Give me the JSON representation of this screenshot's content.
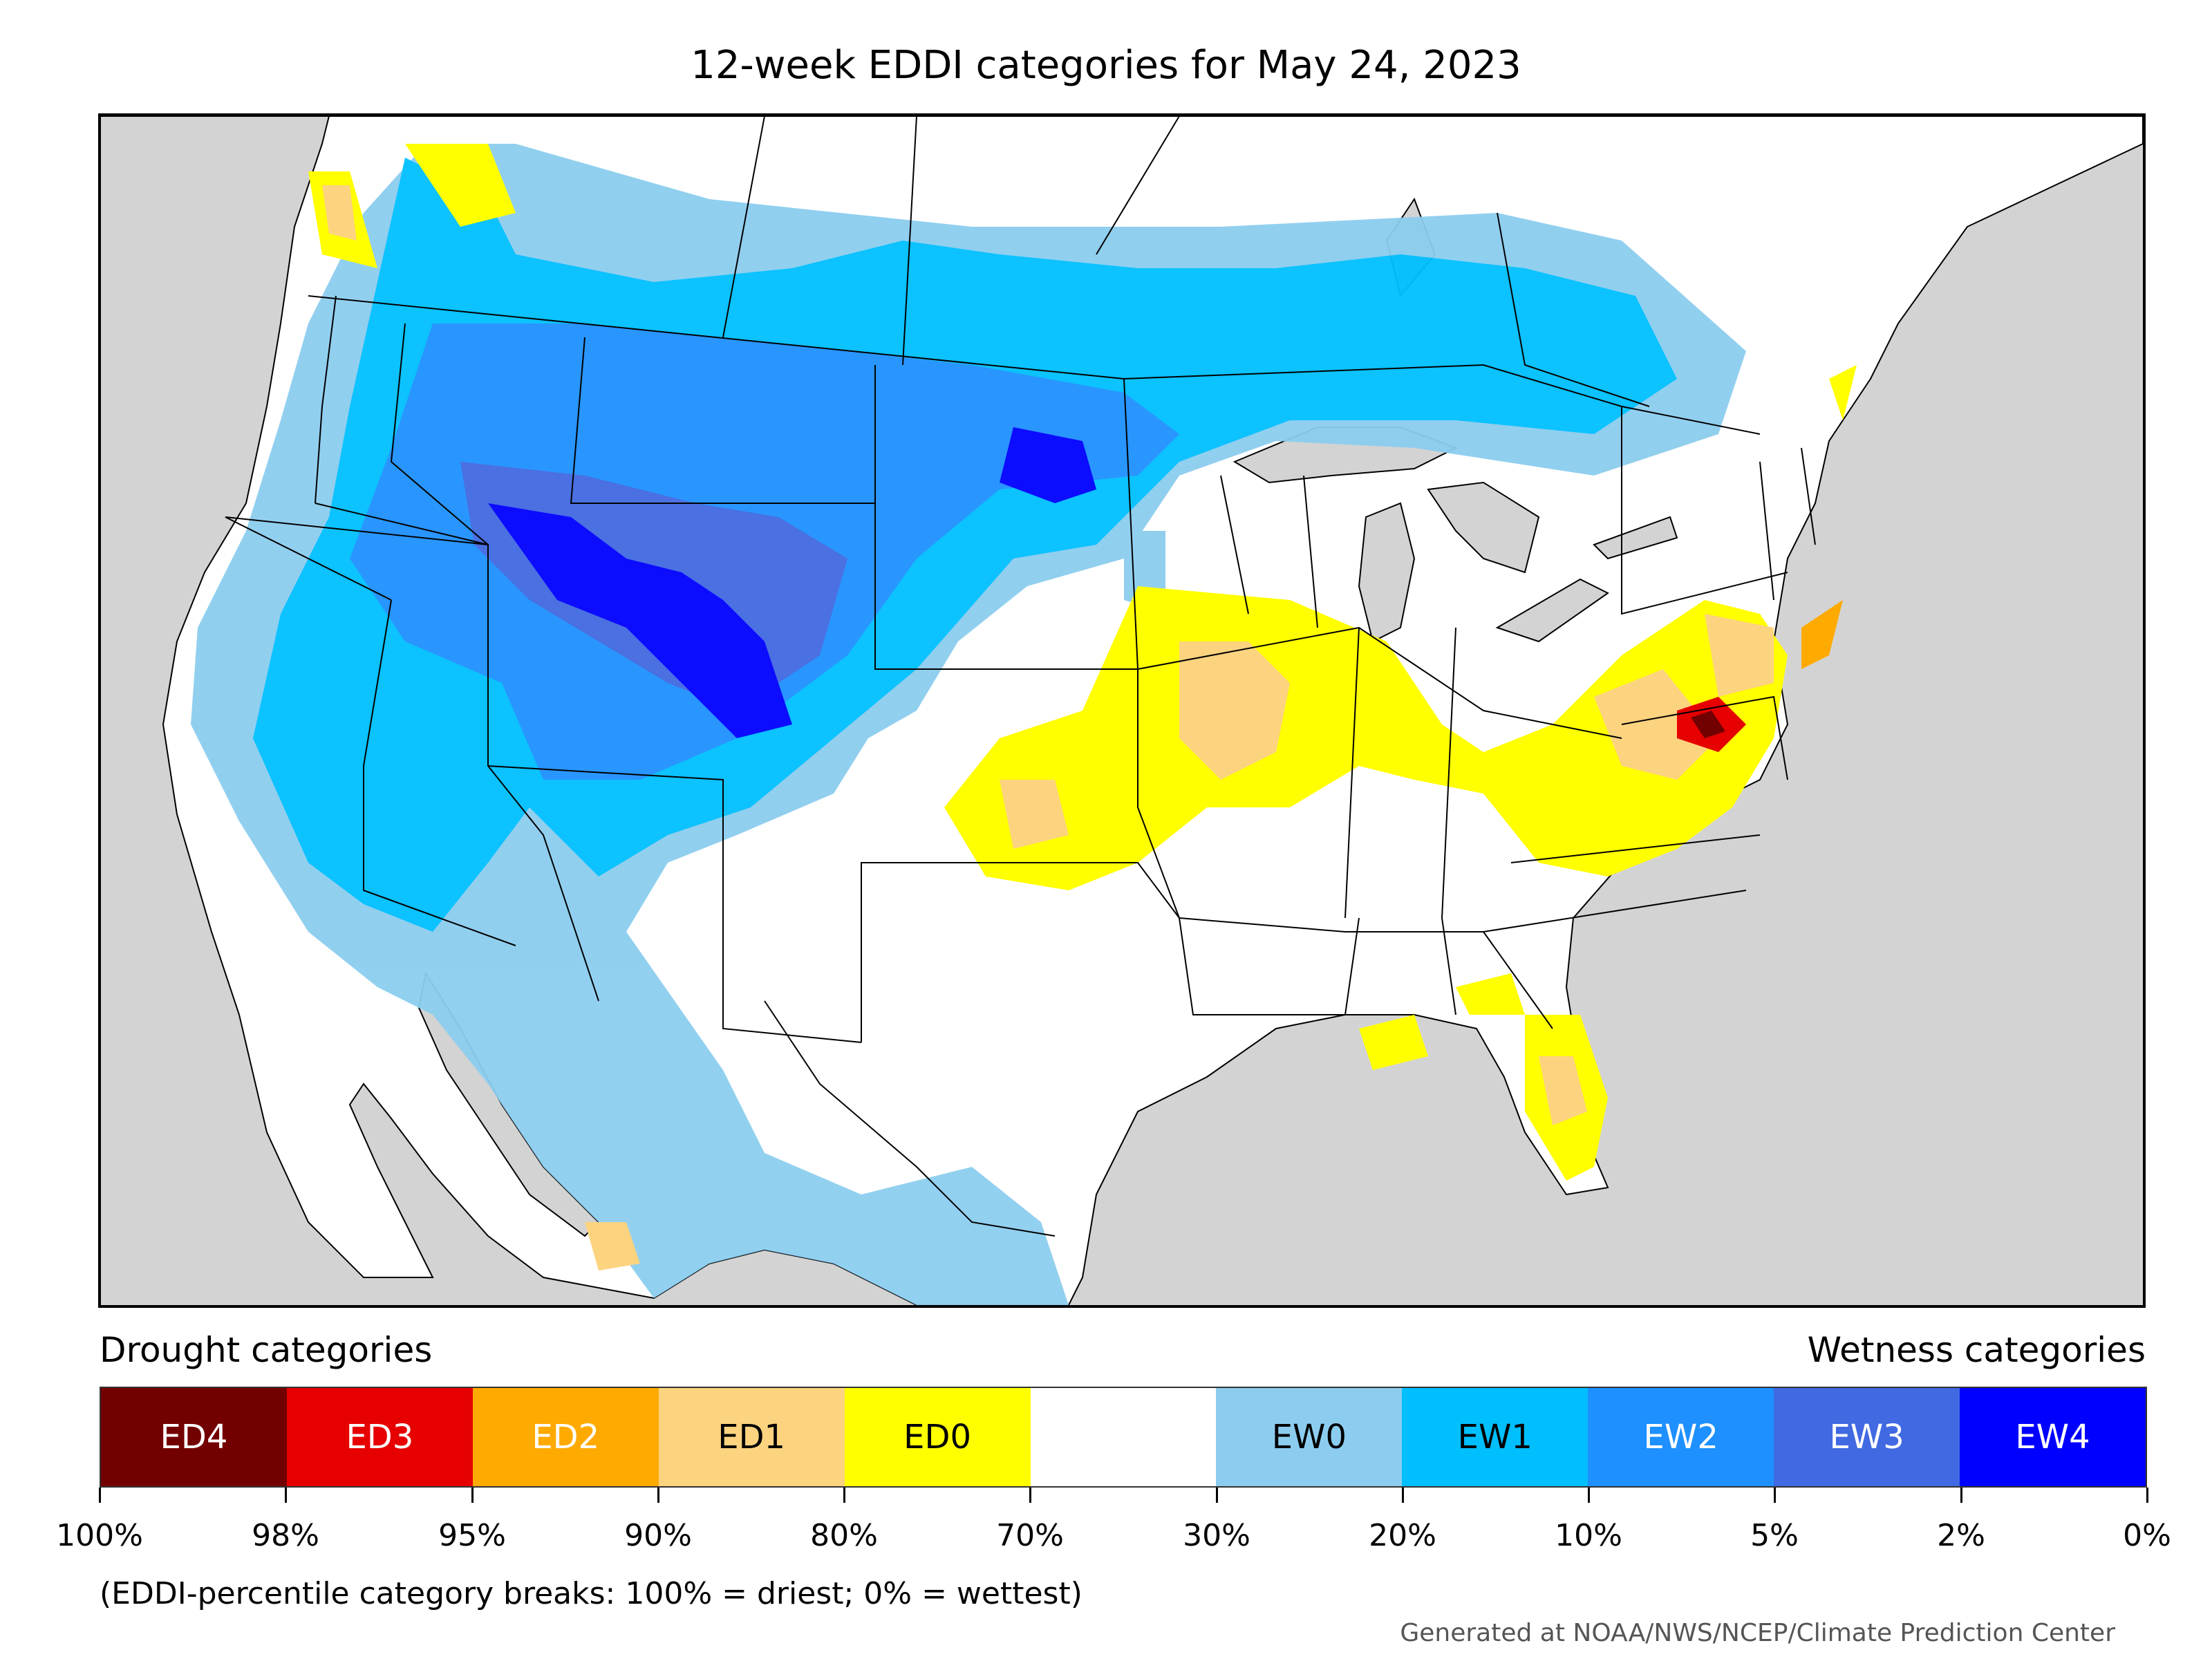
{
  "title": "12-week EDDI categories for May 24, 2023",
  "legend": {
    "drought_label": "Drought categories",
    "wetness_label": "Wetness categories",
    "categories": [
      {
        "label": "ED4",
        "color": "#730000",
        "text_color": "#ffffff"
      },
      {
        "label": "ED3",
        "color": "#e60000",
        "text_color": "#ffffff"
      },
      {
        "label": "ED2",
        "color": "#ffaa00",
        "text_color": "#ffffff"
      },
      {
        "label": "ED1",
        "color": "#fcd37f",
        "text_color": "#000000"
      },
      {
        "label": "ED0",
        "color": "#ffff00",
        "text_color": "#000000"
      },
      {
        "label": "",
        "color": "#ffffff",
        "text_color": "#000000"
      },
      {
        "label": "EW0",
        "color": "#8ccdef",
        "text_color": "#000000"
      },
      {
        "label": "EW1",
        "color": "#00bfff",
        "text_color": "#000000"
      },
      {
        "label": "EW2",
        "color": "#1e90ff",
        "text_color": "#ffffff"
      },
      {
        "label": "EW3",
        "color": "#4169e1",
        "text_color": "#ffffff"
      },
      {
        "label": "EW4",
        "color": "#0000ff",
        "text_color": "#ffffff"
      }
    ],
    "breaks": [
      "100%",
      "98%",
      "95%",
      "90%",
      "80%",
      "70%",
      "30%",
      "20%",
      "10%",
      "5%",
      "2%",
      "0%"
    ]
  },
  "note": "(EDDI-percentile category breaks: 100% = driest; 0% = wettest)",
  "credit": "Generated at NOAA/NWS/NCEP/Climate Prediction Center",
  "map": {
    "ocean_color": "#d3d3d3",
    "land_color": "#ffffff",
    "border_color": "#000000"
  }
}
